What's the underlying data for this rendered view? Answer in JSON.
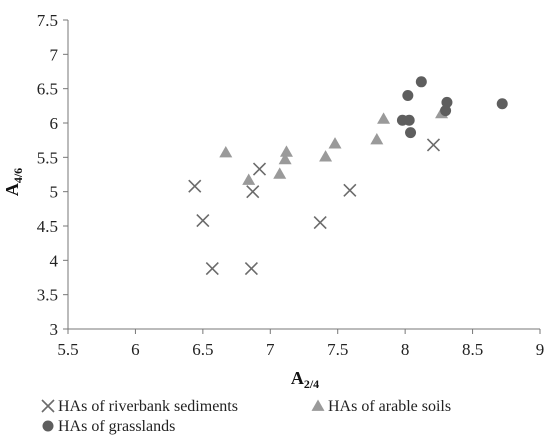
{
  "chart_data": {
    "type": "scatter",
    "xlabel": {
      "main": "A",
      "sub": "2/4"
    },
    "ylabel": {
      "main": "A",
      "sub": "4/6"
    },
    "xlim": [
      5.5,
      9
    ],
    "ylim": [
      3,
      7.5
    ],
    "xticks": [
      "5.5",
      "6",
      "6.5",
      "7",
      "7.5",
      "8",
      "8.5",
      "9"
    ],
    "yticks": [
      "3",
      "3.5",
      "4",
      "4.5",
      "5",
      "5.5",
      "6",
      "6.5",
      "7",
      "7.5"
    ],
    "grid": false,
    "legend_position": "bottom",
    "series": [
      {
        "name": "HAs of riverbank sediments",
        "marker": "x",
        "color": "#6b6b6b",
        "points": [
          [
            6.44,
            5.08
          ],
          [
            6.5,
            4.58
          ],
          [
            6.57,
            3.88
          ],
          [
            6.86,
            3.88
          ],
          [
            6.87,
            5.0
          ],
          [
            6.92,
            5.33
          ],
          [
            7.37,
            4.55
          ],
          [
            7.59,
            5.02
          ],
          [
            8.21,
            5.68
          ]
        ]
      },
      {
        "name": "HAs of arable soils",
        "marker": "triangle",
        "color": "#9a9a9a",
        "points": [
          [
            6.67,
            5.57
          ],
          [
            6.84,
            5.17
          ],
          [
            7.07,
            5.26
          ],
          [
            7.11,
            5.47
          ],
          [
            7.12,
            5.58
          ],
          [
            7.41,
            5.51
          ],
          [
            7.48,
            5.7
          ],
          [
            7.79,
            5.76
          ],
          [
            7.84,
            6.06
          ],
          [
            8.27,
            6.14
          ]
        ]
      },
      {
        "name": "HAs of grasslands",
        "marker": "circle",
        "color": "#5e5e5e",
        "points": [
          [
            7.98,
            6.04
          ],
          [
            8.02,
            6.4
          ],
          [
            8.03,
            6.04
          ],
          [
            8.04,
            5.86
          ],
          [
            8.12,
            6.6
          ],
          [
            8.3,
            6.18
          ],
          [
            8.31,
            6.3
          ],
          [
            8.72,
            6.28
          ]
        ]
      }
    ]
  }
}
